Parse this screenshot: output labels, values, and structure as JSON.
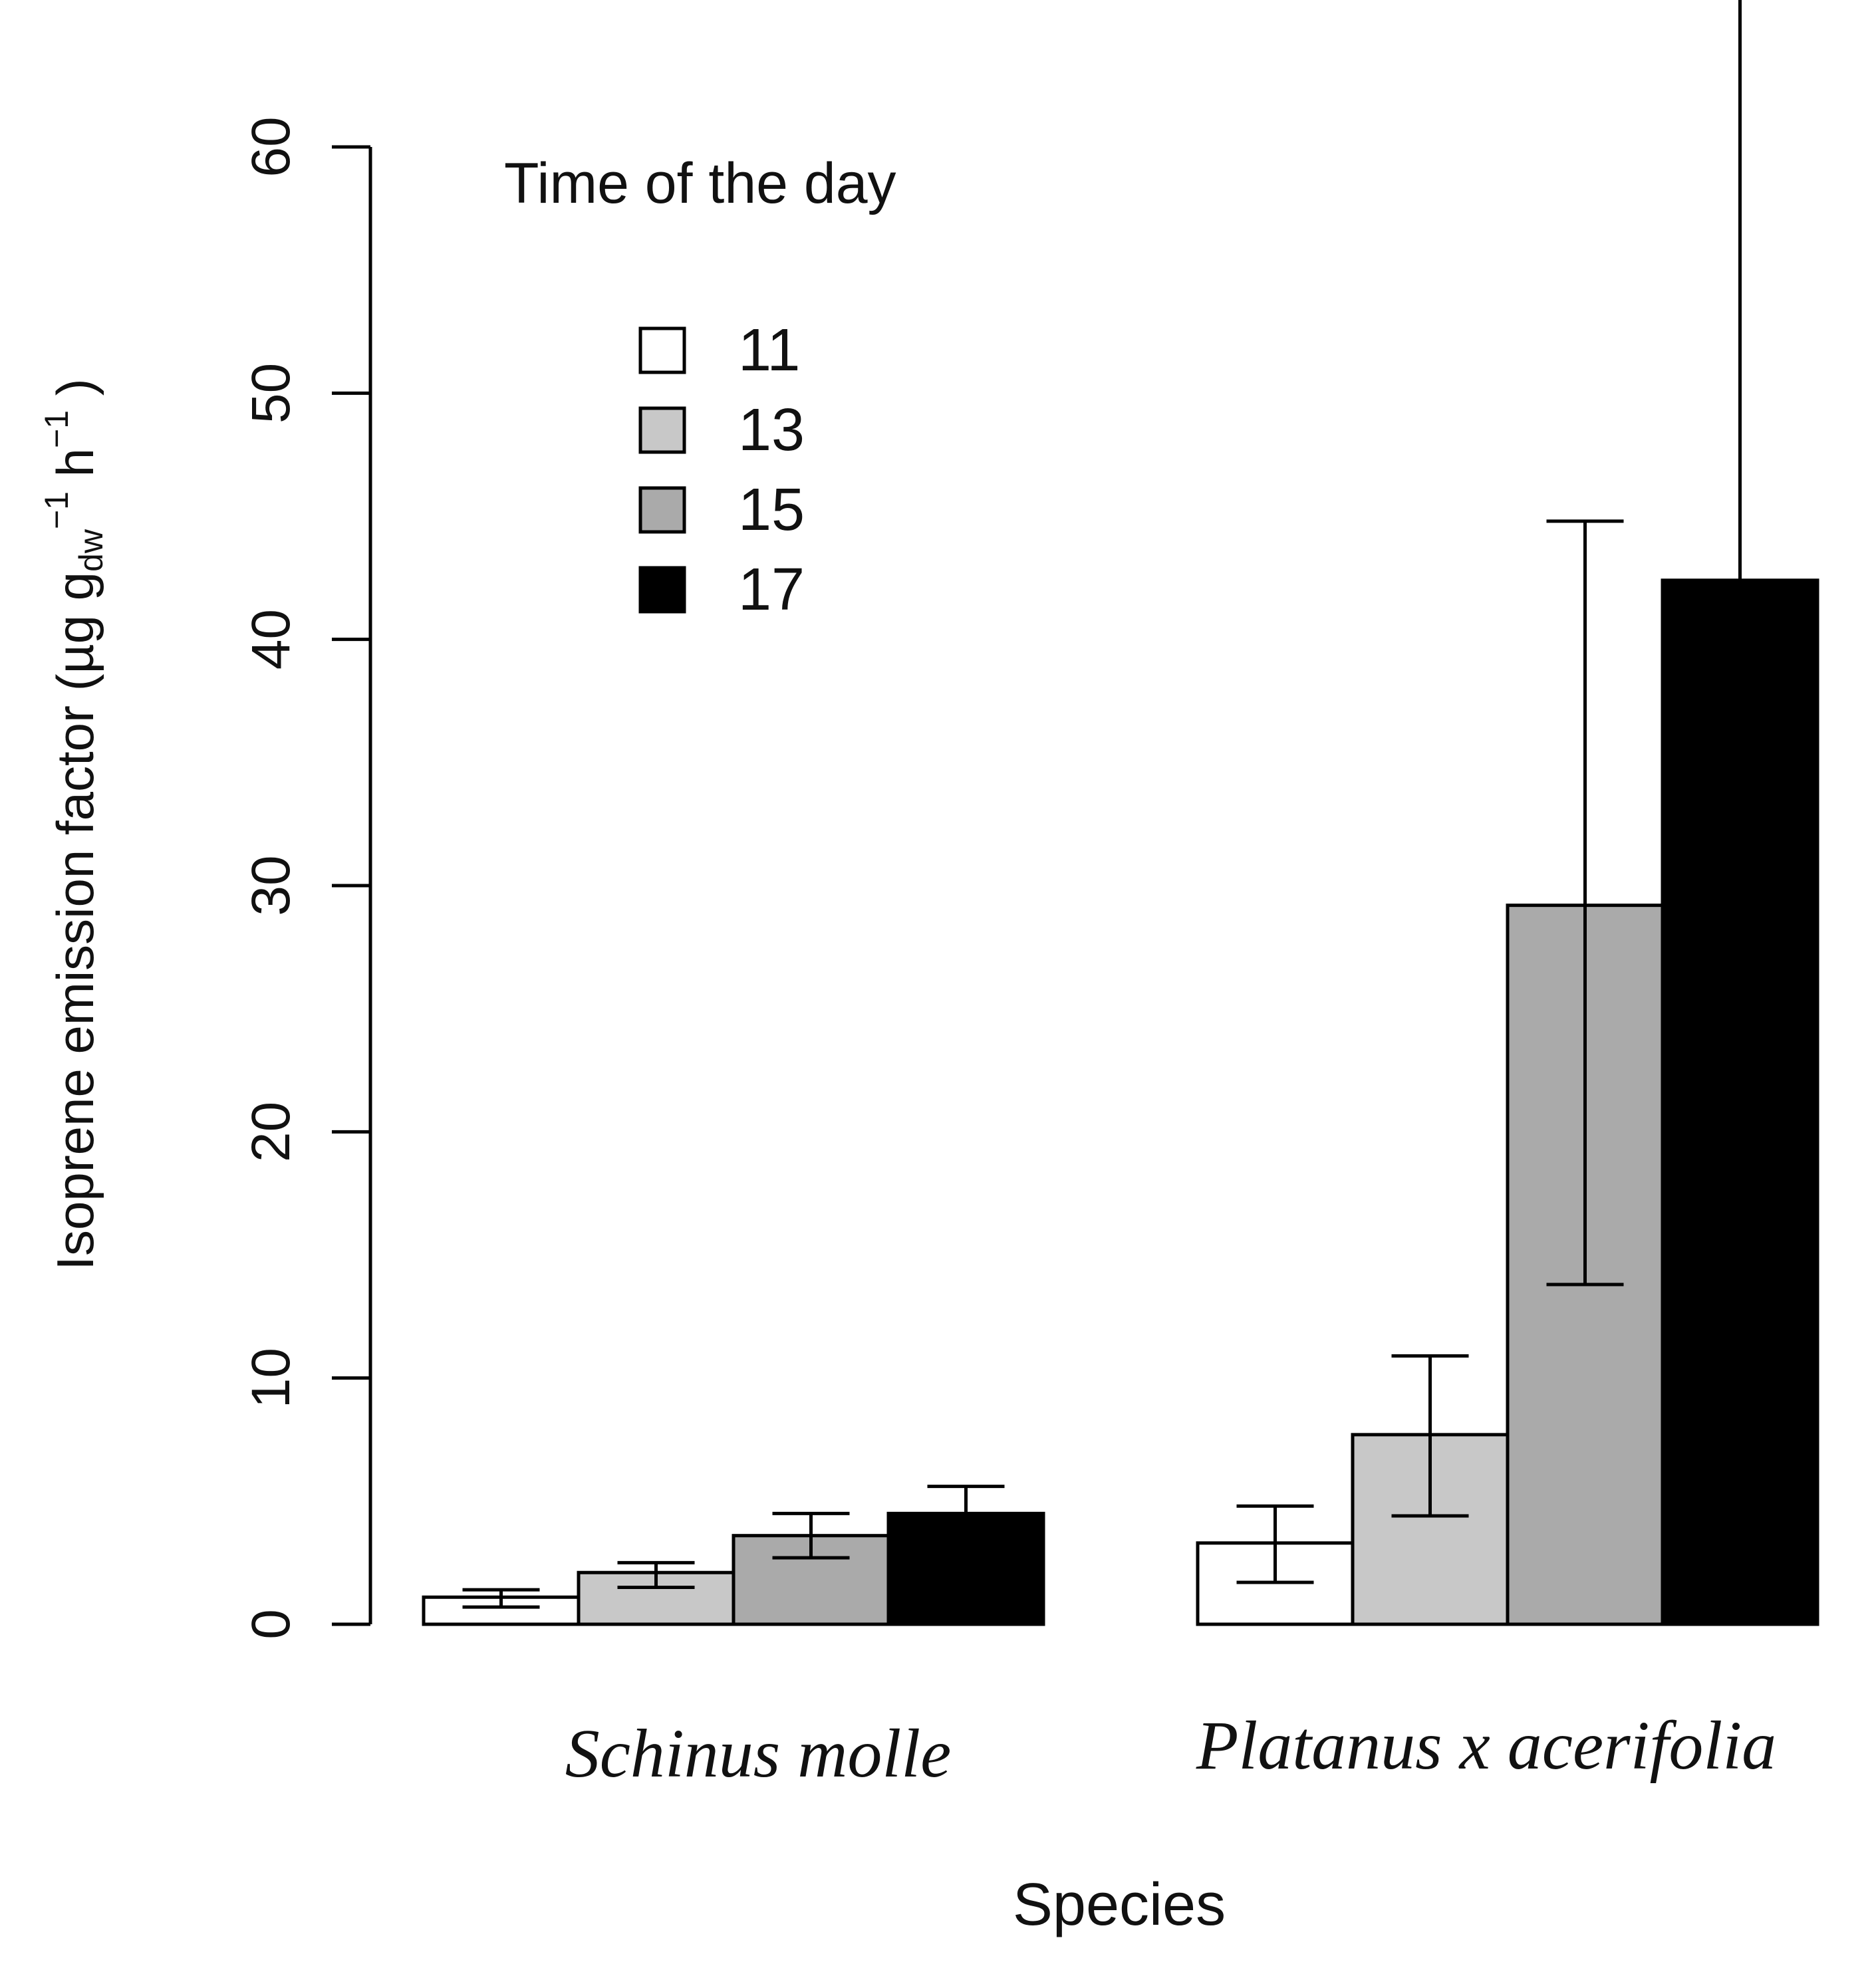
{
  "chart_data": {
    "type": "bar",
    "title": "",
    "xlabel": "Species",
    "ylabel": {
      "base": "Isoprene emission factor (µg g",
      "sub": "dw",
      "sup1": "−1",
      "mid": " h",
      "sup2": "−1",
      "end": " )"
    },
    "categories": [
      "Schinus molle",
      "Platanus x acerifolia"
    ],
    "ylim": [
      0,
      60
    ],
    "yticks": [
      "0",
      "10",
      "20",
      "30",
      "40",
      "50",
      "60"
    ],
    "legend": {
      "title": "Time of the day",
      "position": "top-left"
    },
    "series": [
      {
        "name": "11",
        "color": "#ffffff",
        "values": [
          1.1,
          3.3
        ],
        "err_low": [
          0.7,
          1.7
        ],
        "err_high": [
          1.4,
          4.8
        ]
      },
      {
        "name": "13",
        "color": "#c8c8c8",
        "values": [
          2.1,
          7.7
        ],
        "err_low": [
          1.5,
          4.4
        ],
        "err_high": [
          2.5,
          10.9
        ]
      },
      {
        "name": "15",
        "color": "#aaaaaa",
        "values": [
          3.6,
          29.2
        ],
        "err_low": [
          2.7,
          13.8
        ],
        "err_high": [
          4.5,
          44.8
        ]
      },
      {
        "name": "17",
        "color": "#000000",
        "values": [
          4.5,
          42.4
        ],
        "err_low": [
          3.5,
          30.0
        ],
        "err_high": [
          5.6,
          66.3
        ]
      }
    ]
  }
}
